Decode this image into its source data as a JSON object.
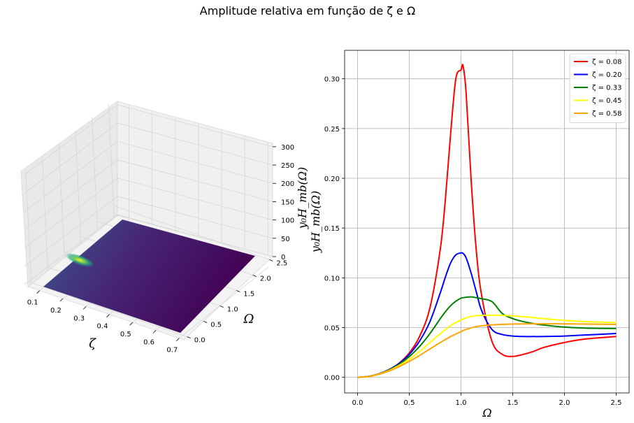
{
  "figure": {
    "suptitle": "Amplitude relativa em função de ζ e Ω"
  },
  "chart_data": [
    {
      "type": "surface3d",
      "xlabel": "ζ",
      "ylabel": "Ω",
      "zlabel": "y₀H_mb(Ω)",
      "x_ticks": [
        "0.1",
        "0.2",
        "0.3",
        "0.4",
        "0.5",
        "0.6",
        "0.7"
      ],
      "y_ticks": [
        "0.0",
        "0.5",
        "1.0",
        "1.5",
        "2.0",
        "2.5"
      ],
      "z_ticks": [
        "0",
        "50",
        "100",
        "150",
        "200",
        "250",
        "300"
      ],
      "xlim": [
        0.05,
        0.72
      ],
      "ylim": [
        -0.1,
        2.6
      ],
      "zlim": [
        0,
        300
      ],
      "colormap": "viridis",
      "grid": true
    },
    {
      "type": "line",
      "xlabel": "Ω",
      "ylabel": "y₀H_mb(Ω)",
      "xlim": [
        -0.125,
        2.625
      ],
      "ylim": [
        -0.0157,
        0.3286
      ],
      "x_ticks": [
        "0.0",
        "0.5",
        "1.0",
        "1.5",
        "2.0",
        "2.5"
      ],
      "y_ticks": [
        "0.00",
        "0.05",
        "0.10",
        "0.15",
        "0.20",
        "0.25",
        "0.30"
      ],
      "grid": true,
      "legend_position": "top-right",
      "x": [
        0.0,
        0.1,
        0.2,
        0.3,
        0.4,
        0.5,
        0.6,
        0.7,
        0.8,
        0.85,
        0.9,
        0.95,
        1.0,
        1.02,
        1.05,
        1.1,
        1.15,
        1.2,
        1.3,
        1.4,
        1.5,
        1.6,
        1.7,
        1.8,
        2.0,
        2.2,
        2.5
      ],
      "series": [
        {
          "name": "ζ = 0.08",
          "color": "#ff0000",
          "values": [
            0.0,
            0.0008,
            0.0033,
            0.0076,
            0.0141,
            0.0245,
            0.0412,
            0.07,
            0.129,
            0.18,
            0.245,
            0.3,
            0.309,
            0.313,
            0.285,
            0.195,
            0.125,
            0.082,
            0.036,
            0.023,
            0.021,
            0.023,
            0.026,
            0.03,
            0.035,
            0.0385,
            0.041
          ]
        },
        {
          "name": "ζ = 0.20",
          "color": "#0000ff",
          "values": [
            0.0,
            0.0008,
            0.0032,
            0.0074,
            0.0136,
            0.023,
            0.0365,
            0.056,
            0.085,
            0.101,
            0.115,
            0.123,
            0.125,
            0.1245,
            0.12,
            0.104,
            0.085,
            0.067,
            0.048,
            0.043,
            0.0415,
            0.041,
            0.041,
            0.041,
            0.0415,
            0.0425,
            0.044
          ]
        },
        {
          "name": "ζ = 0.33",
          "color": "#008000",
          "values": [
            0.0,
            0.0008,
            0.0031,
            0.0071,
            0.0128,
            0.0208,
            0.0311,
            0.044,
            0.059,
            0.066,
            0.072,
            0.0765,
            0.0795,
            0.08,
            0.0805,
            0.0808,
            0.08,
            0.079,
            0.076,
            0.064,
            0.059,
            0.056,
            0.054,
            0.0525,
            0.0505,
            0.0495,
            0.049
          ]
        },
        {
          "name": "ζ = 0.45",
          "color": "#ffff00",
          "values": [
            0.0,
            0.0007,
            0.003,
            0.0067,
            0.0118,
            0.0182,
            0.026,
            0.035,
            0.044,
            0.048,
            0.052,
            0.055,
            0.0575,
            0.0585,
            0.0598,
            0.0612,
            0.062,
            0.0623,
            0.0625,
            0.0622,
            0.0617,
            0.061,
            0.06,
            0.059,
            0.0572,
            0.056,
            0.055
          ]
        },
        {
          "name": "ζ = 0.58",
          "color": "#ffa500",
          "values": [
            0.0,
            0.0007,
            0.0028,
            0.0062,
            0.0107,
            0.016,
            0.022,
            0.0285,
            0.035,
            0.038,
            0.041,
            0.0435,
            0.046,
            0.047,
            0.0482,
            0.0498,
            0.051,
            0.0518,
            0.0527,
            0.0532,
            0.0535,
            0.0537,
            0.0538,
            0.0538,
            0.0537,
            0.0535,
            0.0532
          ]
        }
      ]
    }
  ]
}
